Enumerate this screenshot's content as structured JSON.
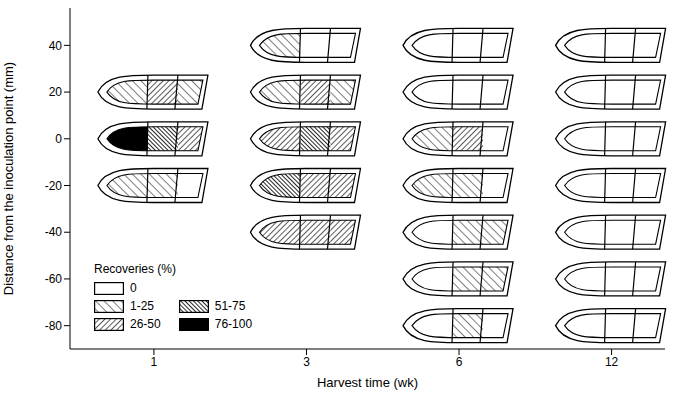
{
  "chart_data": {
    "type": "scatter",
    "x_label": "Harvest time (wk)",
    "y_label": "Distance from the inoculation point (mm)",
    "categories": [
      "1",
      "3",
      "6",
      "12"
    ],
    "ylim": [
      -90,
      56
    ],
    "yticks": [
      40,
      20,
      0,
      -20,
      -40,
      -60,
      -80
    ],
    "legend_title": "Recoveries (%)",
    "classes": [
      "0",
      "1-25",
      "26-50",
      "51-75",
      "76-100"
    ],
    "legend": "lower left",
    "points": [
      {
        "x": "1",
        "y": 20,
        "sections": [
          "1-25",
          "26-50",
          "1-25"
        ]
      },
      {
        "x": "1",
        "y": 0,
        "sections": [
          "76-100",
          "51-75",
          "26-50"
        ]
      },
      {
        "x": "1",
        "y": -20,
        "sections": [
          "1-25",
          "1-25",
          "0"
        ]
      },
      {
        "x": "3",
        "y": 40,
        "sections": [
          "1-25",
          "0",
          "0"
        ]
      },
      {
        "x": "3",
        "y": 20,
        "sections": [
          "1-25",
          "26-50",
          "1-25"
        ]
      },
      {
        "x": "3",
        "y": 0,
        "sections": [
          "26-50",
          "51-75",
          "26-50"
        ]
      },
      {
        "x": "3",
        "y": -20,
        "sections": [
          "51-75",
          "26-50",
          "26-50"
        ]
      },
      {
        "x": "3",
        "y": -40,
        "sections": [
          "26-50",
          "26-50",
          "26-50"
        ]
      },
      {
        "x": "6",
        "y": 40,
        "sections": [
          "0",
          "0",
          "0"
        ]
      },
      {
        "x": "6",
        "y": 20,
        "sections": [
          "0",
          "0",
          "0"
        ]
      },
      {
        "x": "6",
        "y": 0,
        "sections": [
          "1-25",
          "26-50",
          "0"
        ]
      },
      {
        "x": "6",
        "y": -20,
        "sections": [
          "1-25",
          "1-25",
          "0"
        ]
      },
      {
        "x": "6",
        "y": -40,
        "sections": [
          "0",
          "1-25",
          "1-25"
        ]
      },
      {
        "x": "6",
        "y": -60,
        "sections": [
          "0",
          "1-25",
          "1-25"
        ]
      },
      {
        "x": "6",
        "y": -80,
        "sections": [
          "0",
          "1-25",
          "0"
        ]
      },
      {
        "x": "12",
        "y": 40,
        "sections": [
          "0",
          "0",
          "0"
        ]
      },
      {
        "x": "12",
        "y": 20,
        "sections": [
          "0",
          "0",
          "0"
        ]
      },
      {
        "x": "12",
        "y": 0,
        "sections": [
          "0",
          "0",
          "0"
        ]
      },
      {
        "x": "12",
        "y": -20,
        "sections": [
          "0",
          "0",
          "0"
        ]
      },
      {
        "x": "12",
        "y": -40,
        "sections": [
          "0",
          "0",
          "0"
        ]
      },
      {
        "x": "12",
        "y": -60,
        "sections": [
          "0",
          "0",
          "0"
        ]
      },
      {
        "x": "12",
        "y": -80,
        "sections": [
          "0",
          "0",
          "0"
        ]
      }
    ]
  }
}
